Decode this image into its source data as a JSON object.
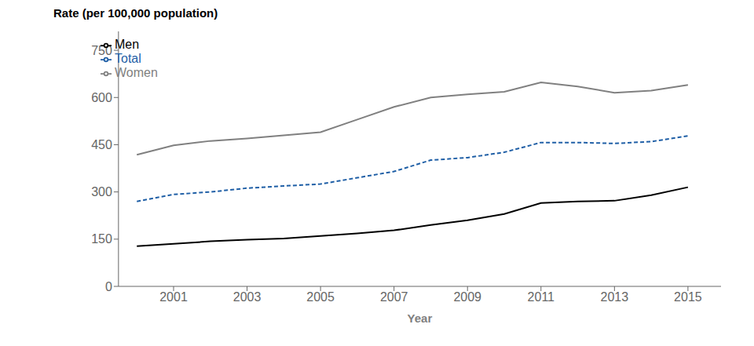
{
  "chart_data": {
    "type": "line",
    "ylabel": "Rate (per 100,000 population)",
    "xlabel": "Year",
    "x": [
      2000,
      2001,
      2002,
      2003,
      2004,
      2005,
      2006,
      2007,
      2008,
      2009,
      2010,
      2011,
      2012,
      2013,
      2014,
      2015
    ],
    "series": [
      {
        "name": "Men",
        "color": "#000000",
        "line_style": "solid",
        "values": [
          128,
          135,
          143,
          148,
          152,
          160,
          168,
          178,
          195,
          210,
          230,
          265,
          270,
          272,
          290,
          315
        ]
      },
      {
        "name": "Women",
        "color": "#808080",
        "line_style": "solid",
        "values": [
          418,
          448,
          462,
          470,
          480,
          490,
          530,
          570,
          600,
          610,
          618,
          648,
          635,
          615,
          622,
          640
        ]
      },
      {
        "name": "Total",
        "color": "#1f5fa6",
        "line_style": "dashed",
        "values": [
          270,
          292,
          300,
          312,
          319,
          325,
          345,
          365,
          401,
          409,
          426,
          457,
          457,
          454,
          460,
          478
        ]
      }
    ],
    "xlim": [
      1999.5,
      2015.9
    ],
    "ylim": [
      0,
      810
    ],
    "xticks": [
      2001,
      2003,
      2005,
      2007,
      2009,
      2011,
      2013,
      2015
    ],
    "yticks": [
      0,
      150,
      300,
      450,
      600,
      750
    ],
    "grid": false,
    "legend": "upper left"
  }
}
